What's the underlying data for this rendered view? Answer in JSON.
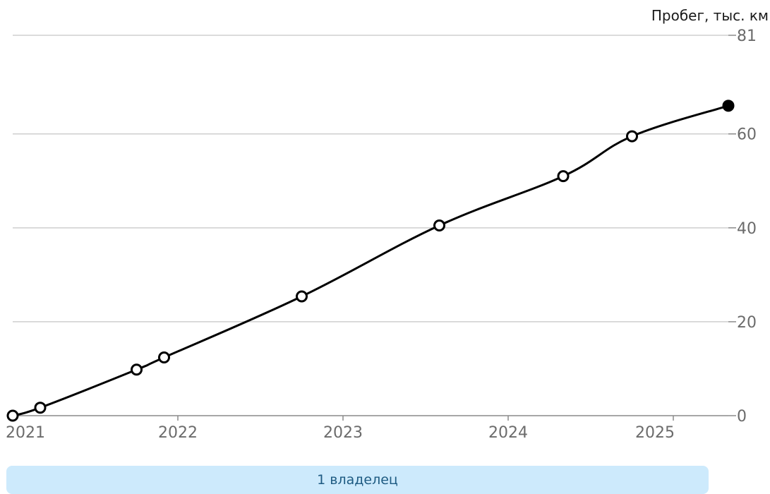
{
  "chart_data": {
    "type": "line",
    "title": "",
    "xlabel": "",
    "ylabel": "Пробег, тыс. км",
    "x_tick_labels": [
      "2021",
      "2022",
      "2023",
      "2024",
      "2025"
    ],
    "y_tick_labels": [
      "0",
      "20",
      "40",
      "60",
      "81"
    ],
    "xlim": [
      "2021-01",
      "2025-05"
    ],
    "ylim": [
      0,
      81
    ],
    "grid": true,
    "series": [
      {
        "x": [
          "2021-01",
          "2021-03",
          "2021-10",
          "2021-12",
          "2022-10",
          "2023-08",
          "2024-05",
          "2024-10",
          "2025-05"
        ],
        "values": [
          0,
          1.7,
          9.8,
          12.4,
          25.4,
          40.5,
          51,
          59.5,
          66
        ],
        "line_color": "#000000",
        "marker_fill": "#ffffff",
        "last_marker_fill": "#000000"
      }
    ]
  },
  "owners": {
    "label": "1 владелец",
    "background": "#cdeafc",
    "text_color": "#1e5b82"
  }
}
